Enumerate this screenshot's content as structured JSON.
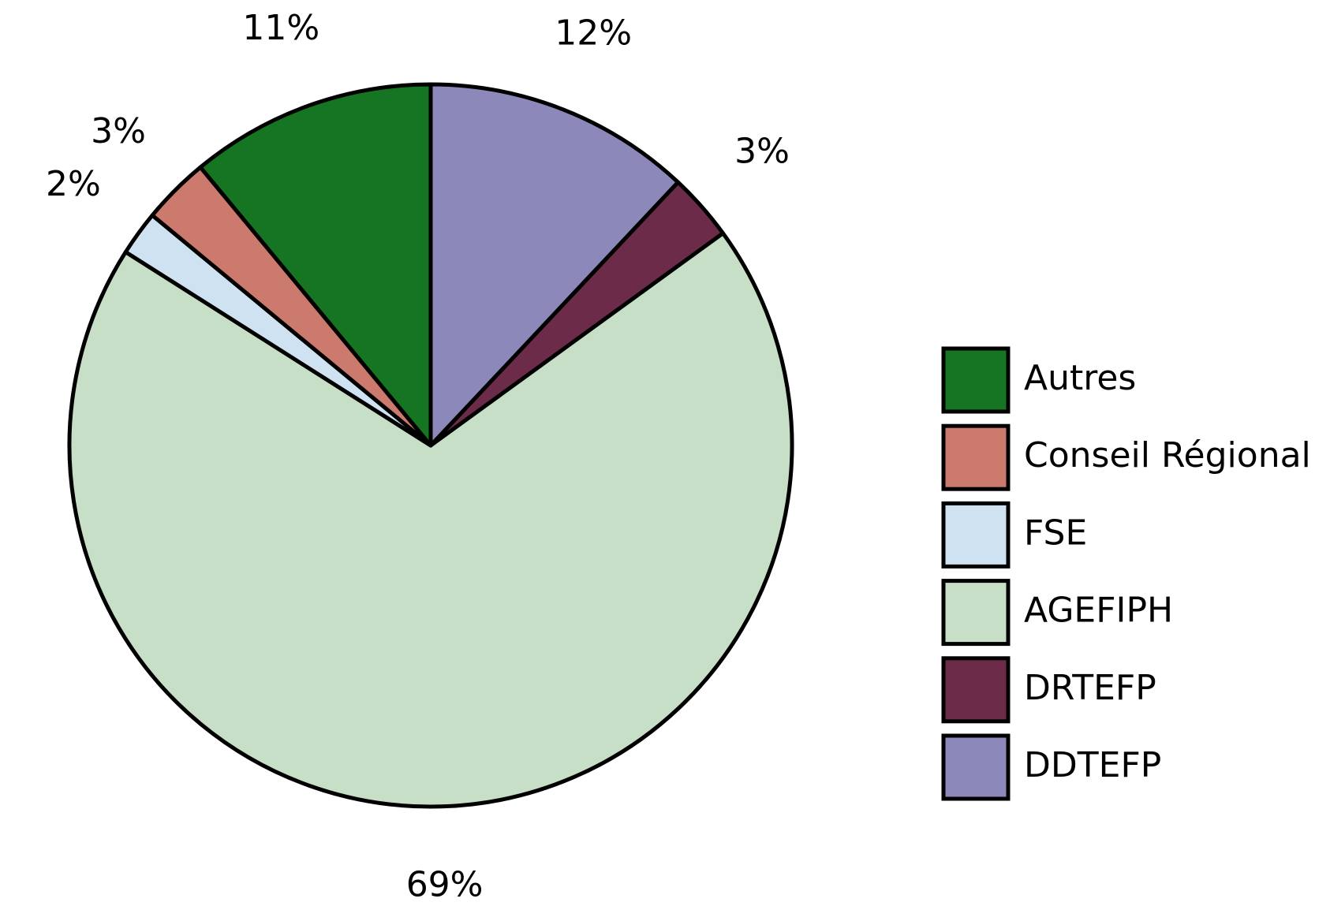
{
  "chart_data": {
    "type": "pie",
    "categories": [
      "Autres",
      "Conseil Régional",
      "FSE",
      "AGEFIPH",
      "DRTEFP",
      "DDTEFP"
    ],
    "values": [
      11,
      3,
      2,
      69,
      3,
      12
    ],
    "value_labels": [
      "11%",
      "3%",
      "2%",
      "69%",
      "3%",
      "12%"
    ],
    "colors": [
      "#167522",
      "#cc7a6e",
      "#cfe2f1",
      "#c8dfc7",
      "#6b2b49",
      "#8c89ba"
    ],
    "legend": "right"
  }
}
